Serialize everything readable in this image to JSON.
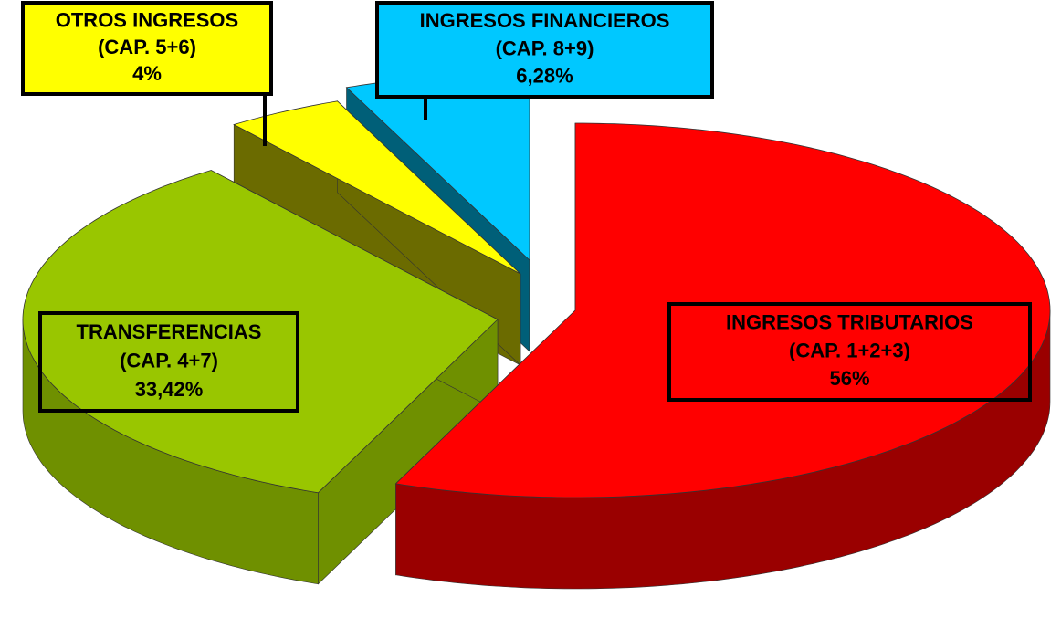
{
  "chart_data": {
    "type": "pie3d",
    "categories": [
      "INGRESOS TRIBUTARIOS",
      "TRANSFERENCIAS",
      "OTROS INGRESOS",
      "INGRESOS FINANCIEROS"
    ],
    "chapters": [
      "(CAP. 1+2+3)",
      "(CAP. 4+7)",
      "(CAP. 5+6)",
      "(CAP. 8+9)"
    ],
    "values": [
      56,
      33.42,
      4,
      6.28
    ],
    "value_labels": [
      "56%",
      "33,42%",
      "4%",
      "6,28%"
    ],
    "colors": [
      "#ff0000",
      "#99c600",
      "#ffff00",
      "#00c8ff"
    ],
    "side_colors": [
      "#9a0000",
      "#6f9000",
      "#6b6b00",
      "#005f78"
    ]
  }
}
